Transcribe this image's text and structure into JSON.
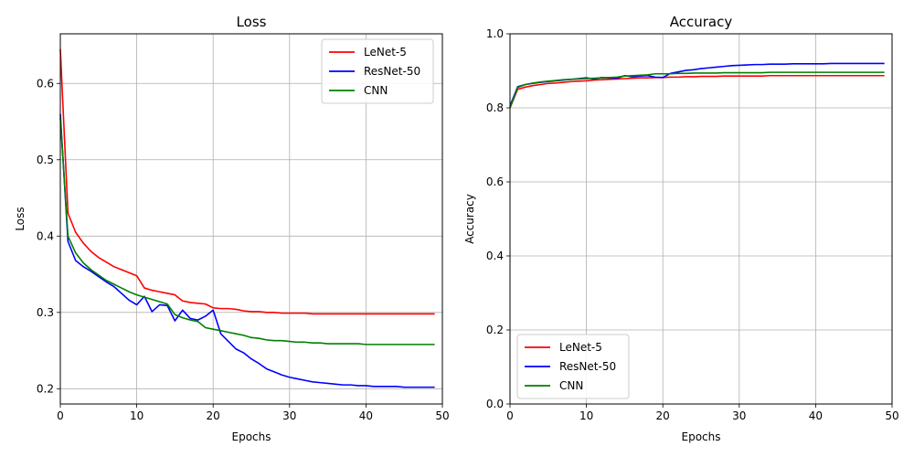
{
  "chart_data": [
    {
      "type": "line",
      "title": "Loss",
      "xlabel": "Epochs",
      "ylabel": "Loss",
      "xlim": [
        0,
        50
      ],
      "ylim": [
        0.18,
        0.665
      ],
      "xticks": [
        0,
        10,
        20,
        30,
        40,
        50
      ],
      "yticks": [
        0.2,
        0.3,
        0.4,
        0.5,
        0.6
      ],
      "xtick_labels": [
        "0",
        "10",
        "20",
        "30",
        "40",
        "50"
      ],
      "ytick_labels": [
        "0.2",
        "0.3",
        "0.4",
        "0.5",
        "0.6"
      ],
      "grid": true,
      "legend_position": "upper right",
      "x": [
        0,
        1,
        2,
        3,
        4,
        5,
        6,
        7,
        8,
        9,
        10,
        11,
        12,
        13,
        14,
        15,
        16,
        17,
        18,
        19,
        20,
        21,
        22,
        23,
        24,
        25,
        26,
        27,
        28,
        29,
        30,
        31,
        32,
        33,
        34,
        35,
        36,
        37,
        38,
        39,
        40,
        41,
        42,
        43,
        44,
        45,
        46,
        47,
        48,
        49
      ],
      "series": [
        {
          "name": "LeNet-5",
          "color": "#ff0000",
          "values": [
            0.645,
            0.43,
            0.405,
            0.391,
            0.38,
            0.372,
            0.366,
            0.36,
            0.356,
            0.352,
            0.348,
            0.332,
            0.329,
            0.327,
            0.325,
            0.323,
            0.315,
            0.313,
            0.312,
            0.311,
            0.306,
            0.305,
            0.305,
            0.304,
            0.302,
            0.301,
            0.301,
            0.3,
            0.3,
            0.299,
            0.299,
            0.299,
            0.299,
            0.298,
            0.298,
            0.298,
            0.298,
            0.298,
            0.298,
            0.298,
            0.298,
            0.298,
            0.298,
            0.298,
            0.298,
            0.298,
            0.298,
            0.298,
            0.298,
            0.298
          ]
        },
        {
          "name": "ResNet-50",
          "color": "#0000ff",
          "values": [
            0.56,
            0.393,
            0.368,
            0.36,
            0.354,
            0.347,
            0.34,
            0.334,
            0.325,
            0.316,
            0.31,
            0.321,
            0.301,
            0.31,
            0.309,
            0.289,
            0.303,
            0.292,
            0.29,
            0.295,
            0.303,
            0.272,
            0.262,
            0.252,
            0.247,
            0.239,
            0.233,
            0.226,
            0.222,
            0.218,
            0.215,
            0.213,
            0.211,
            0.209,
            0.208,
            0.207,
            0.206,
            0.205,
            0.205,
            0.204,
            0.204,
            0.203,
            0.203,
            0.203,
            0.203,
            0.202,
            0.202,
            0.202,
            0.202,
            0.202
          ]
        },
        {
          "name": "CNN",
          "color": "#008000",
          "values": [
            0.555,
            0.4,
            0.378,
            0.365,
            0.356,
            0.349,
            0.342,
            0.337,
            0.332,
            0.327,
            0.323,
            0.32,
            0.317,
            0.314,
            0.311,
            0.297,
            0.293,
            0.29,
            0.288,
            0.28,
            0.278,
            0.276,
            0.274,
            0.272,
            0.27,
            0.267,
            0.266,
            0.264,
            0.263,
            0.263,
            0.262,
            0.261,
            0.261,
            0.26,
            0.26,
            0.259,
            0.259,
            0.259,
            0.259,
            0.259,
            0.258,
            0.258,
            0.258,
            0.258,
            0.258,
            0.258,
            0.258,
            0.258,
            0.258,
            0.258
          ]
        }
      ]
    },
    {
      "type": "line",
      "title": "Accuracy",
      "xlabel": "Epochs",
      "ylabel": "Accuracy",
      "xlim": [
        0,
        50
      ],
      "ylim": [
        0,
        1
      ],
      "xticks": [
        0,
        10,
        20,
        30,
        40,
        50
      ],
      "yticks": [
        0.0,
        0.2,
        0.4,
        0.6,
        0.8,
        1.0
      ],
      "xtick_labels": [
        "0",
        "10",
        "20",
        "30",
        "40",
        "50"
      ],
      "ytick_labels": [
        "0.0",
        "0.2",
        "0.4",
        "0.6",
        "0.8",
        "1.0"
      ],
      "grid": true,
      "legend_position": "lower left",
      "x": [
        0,
        1,
        2,
        3,
        4,
        5,
        6,
        7,
        8,
        9,
        10,
        11,
        12,
        13,
        14,
        15,
        16,
        17,
        18,
        19,
        20,
        21,
        22,
        23,
        24,
        25,
        26,
        27,
        28,
        29,
        30,
        31,
        32,
        33,
        34,
        35,
        36,
        37,
        38,
        39,
        40,
        41,
        42,
        43,
        44,
        45,
        46,
        47,
        48,
        49
      ],
      "series": [
        {
          "name": "LeNet-5",
          "color": "#ff0000",
          "values": [
            0.8,
            0.85,
            0.856,
            0.86,
            0.863,
            0.866,
            0.867,
            0.869,
            0.871,
            0.872,
            0.873,
            0.875,
            0.876,
            0.877,
            0.878,
            0.879,
            0.88,
            0.881,
            0.881,
            0.882,
            0.882,
            0.883,
            0.883,
            0.884,
            0.884,
            0.885,
            0.885,
            0.885,
            0.886,
            0.886,
            0.886,
            0.886,
            0.886,
            0.886,
            0.887,
            0.887,
            0.887,
            0.887,
            0.887,
            0.887,
            0.887,
            0.887,
            0.887,
            0.887,
            0.887,
            0.887,
            0.887,
            0.887,
            0.887,
            0.887
          ]
        },
        {
          "name": "ResNet-50",
          "color": "#0000ff",
          "values": [
            0.805,
            0.857,
            0.863,
            0.866,
            0.869,
            0.871,
            0.873,
            0.875,
            0.877,
            0.879,
            0.881,
            0.878,
            0.882,
            0.881,
            0.88,
            0.887,
            0.884,
            0.886,
            0.887,
            0.883,
            0.882,
            0.893,
            0.897,
            0.901,
            0.903,
            0.906,
            0.908,
            0.91,
            0.912,
            0.914,
            0.915,
            0.916,
            0.917,
            0.917,
            0.918,
            0.918,
            0.918,
            0.919,
            0.919,
            0.919,
            0.919,
            0.919,
            0.92,
            0.92,
            0.92,
            0.92,
            0.92,
            0.92,
            0.92,
            0.92
          ]
        },
        {
          "name": "CNN",
          "color": "#008000",
          "values": [
            0.8,
            0.855,
            0.863,
            0.867,
            0.87,
            0.872,
            0.874,
            0.876,
            0.877,
            0.878,
            0.879,
            0.88,
            0.881,
            0.882,
            0.883,
            0.886,
            0.887,
            0.888,
            0.889,
            0.892,
            0.892,
            0.892,
            0.893,
            0.893,
            0.894,
            0.894,
            0.894,
            0.894,
            0.895,
            0.895,
            0.895,
            0.895,
            0.895,
            0.895,
            0.896,
            0.896,
            0.896,
            0.896,
            0.896,
            0.896,
            0.896,
            0.896,
            0.896,
            0.896,
            0.896,
            0.896,
            0.896,
            0.896,
            0.896,
            0.896
          ]
        }
      ]
    }
  ]
}
